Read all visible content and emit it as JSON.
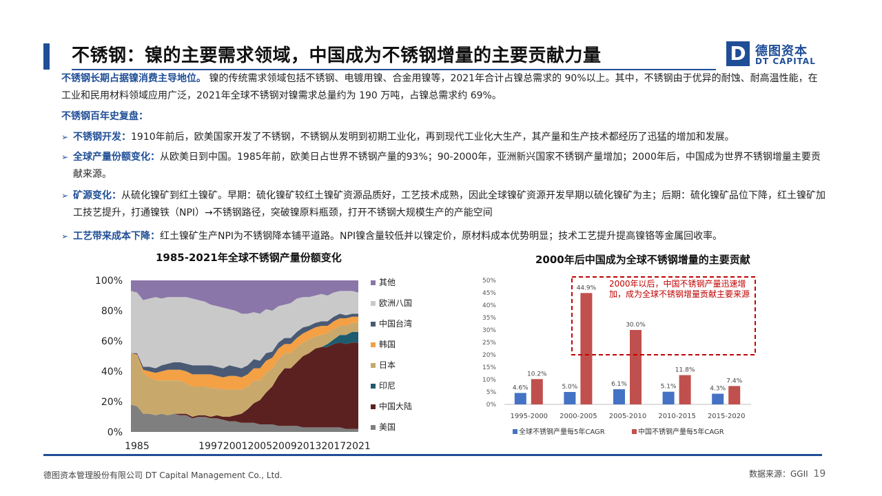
{
  "header": {
    "title": "不锈钢：镍的主要需求领域，中国成为不锈钢增量的主要贡献力量",
    "logo_mark": "D",
    "logo_cn": "德图资本",
    "logo_en": "DT CAPITAL"
  },
  "intro": {
    "lead": "不锈钢长期占据镍消费主导地位。",
    "body": "镍的传统需求领域包括不锈钢、电镀用镍、合金用镍等，2021年合计占镍总需求的 90%以上。其中，不锈钢由于优异的耐蚀、耐高温性能，在工业和民用材料领域应用广泛，2021年全球不锈钢对镍需求总量约为 190 万吨，占镍总需求约 69%。"
  },
  "history_title": "不锈钢百年史复盘：",
  "bullets": [
    {
      "head": "不锈钢开发：",
      "body": "1910年前后，欧美国家开发了不锈钢，不锈钢从发明到初期工业化，再到现代工业化大生产，其产量和生产技术都经历了迅猛的增加和发展。"
    },
    {
      "head": "全球产量份额变化：",
      "body": "从欧美日到中国。1985年前，欧美日占世界不锈钢产量的93%；90-2000年，亚洲新兴国家不锈钢产量增加；2000年后，中国成为世界不锈钢增量主要贡献来源。"
    },
    {
      "head": "矿源变化：",
      "body": "从硫化镍矿到红土镍矿。早期：硫化镍矿较红土镍矿资源品质好，工艺技术成熟，因此全球镍矿资源开发早期以硫化镍矿为主；后期：硫化镍矿品位下降，红土镍矿加工技艺提升，打通镍铁（NPI）→不锈钢路径，突破镍原料瓶颈，打开不锈钢大规模生产的产能空间"
    },
    {
      "head": "工艺带来成本下降：",
      "body": "红土镍矿生产NPI为不锈钢降本铺平道路。NPI镍含量较低并以镍定价，原材料成本优势明显；技术工艺提升提高镍铬等金属回收率。"
    }
  ],
  "chart_data": [
    {
      "type": "area",
      "title": "1985-2021年全球不锈钢产量份额变化",
      "x": [
        1984,
        1985,
        1986,
        1987,
        1988,
        1989,
        1990,
        1991,
        1992,
        1993,
        1994,
        1995,
        1996,
        1997,
        1998,
        1999,
        2000,
        2001,
        2002,
        2003,
        2004,
        2005,
        2006,
        2007,
        2008,
        2009,
        2010,
        2011,
        2012,
        2013,
        2014,
        2015,
        2016,
        2017,
        2018,
        2019,
        2020,
        2021
      ],
      "x_tick_labels": [
        "1985",
        "1997",
        "2001",
        "2005",
        "2009",
        "2013",
        "2017",
        "2021"
      ],
      "x_tick_values": [
        1985,
        1997,
        2001,
        2005,
        2009,
        2013,
        2017,
        2021
      ],
      "y_tick_labels": [
        "100%",
        "80%",
        "60%",
        "40%",
        "20%",
        "0%"
      ],
      "ylim": [
        0,
        100
      ],
      "legend_position": "right",
      "series": [
        {
          "name": "美国",
          "color": "#7f7f7f",
          "values": [
            18,
            17,
            12,
            12,
            11,
            12,
            11,
            12,
            11,
            11,
            9,
            10,
            10,
            9,
            9,
            8,
            7,
            7,
            6,
            6,
            6,
            5,
            5,
            5,
            4,
            4,
            4,
            4,
            3,
            3,
            3,
            3,
            3,
            3,
            3,
            2,
            2,
            2
          ]
        },
        {
          "name": "中国大陆",
          "color": "#5b2120",
          "values": [
            0,
            0,
            0,
            0,
            0,
            0,
            0,
            0,
            1,
            1,
            1,
            1,
            1,
            1,
            2,
            2,
            3,
            4,
            6,
            9,
            13,
            16,
            21,
            25,
            33,
            38,
            38,
            42,
            47,
            49,
            52,
            53,
            53,
            55,
            56,
            56,
            57,
            57
          ]
        },
        {
          "name": "印尼",
          "color": "#1d5b6e",
          "values": [
            0,
            0,
            0,
            0,
            0,
            0,
            0,
            0,
            0,
            0,
            0,
            0,
            0,
            0,
            0,
            0,
            0,
            0,
            0,
            0,
            0,
            0,
            0,
            0,
            0,
            0,
            0,
            0,
            0,
            0,
            0,
            0,
            2,
            3,
            5,
            6,
            7,
            7
          ]
        },
        {
          "name": "日本",
          "color": "#c8a96b",
          "values": [
            34,
            33,
            27,
            24,
            23,
            22,
            23,
            22,
            22,
            20,
            20,
            19,
            19,
            19,
            18,
            18,
            18,
            17,
            16,
            15,
            15,
            13,
            13,
            12,
            11,
            10,
            10,
            10,
            9,
            9,
            8,
            8,
            7,
            7,
            6,
            6,
            6,
            6
          ]
        },
        {
          "name": "韩国",
          "color": "#f4a044",
          "values": [
            0,
            1,
            2,
            4,
            5,
            6,
            7,
            7,
            7,
            8,
            8,
            8,
            8,
            9,
            8,
            8,
            9,
            9,
            8,
            8,
            8,
            8,
            8,
            7,
            7,
            6,
            6,
            6,
            6,
            6,
            6,
            6,
            5,
            5,
            5,
            5,
            4,
            4
          ]
        },
        {
          "name": "中国台湾",
          "color": "#4a5a74",
          "values": [
            0,
            1,
            2,
            3,
            3,
            4,
            4,
            5,
            5,
            5,
            6,
            6,
            6,
            6,
            6,
            6,
            7,
            6,
            6,
            6,
            6,
            5,
            5,
            4,
            4,
            4,
            4,
            4,
            4,
            3,
            3,
            3,
            3,
            3,
            3,
            2,
            2,
            2
          ]
        },
        {
          "name": "欧洲八国",
          "color": "#c9c9c9",
          "values": [
            41,
            40,
            44,
            45,
            47,
            44,
            44,
            43,
            43,
            44,
            44,
            43,
            42,
            40,
            40,
            40,
            37,
            37,
            36,
            34,
            31,
            31,
            29,
            27,
            24,
            22,
            23,
            22,
            20,
            19,
            18,
            18,
            17,
            16,
            15,
            16,
            15,
            14
          ]
        },
        {
          "name": "其他",
          "color": "#8a76a8",
          "values": [
            7,
            8,
            13,
            12,
            11,
            12,
            11,
            11,
            11,
            11,
            12,
            13,
            14,
            16,
            17,
            18,
            19,
            20,
            22,
            22,
            21,
            22,
            19,
            20,
            17,
            16,
            15,
            12,
            11,
            11,
            10,
            9,
            10,
            8,
            7,
            7,
            7,
            8
          ]
        }
      ]
    },
    {
      "type": "bar",
      "title": "2000年后中国成为全球不锈钢增量的主要贡献",
      "categories": [
        "1995-2000",
        "2000-2005",
        "2005-2010",
        "2010-2015",
        "2015-2020"
      ],
      "y_tick_labels": [
        "50%",
        "45%",
        "40%",
        "35%",
        "30%",
        "25%",
        "20%",
        "15%",
        "10%",
        "5%",
        "0%"
      ],
      "ylim": [
        0,
        50
      ],
      "series": [
        {
          "name": "全球不锈钢产量每5年CAGR",
          "color": "#4472c4",
          "values": [
            4.6,
            5.0,
            6.1,
            5.1,
            4.3
          ],
          "labels": [
            "4.6%",
            "5.0%",
            "6.1%",
            "5.1%",
            "4.3%"
          ]
        },
        {
          "name": "中国不锈钢产量每5年CAGR",
          "color": "#c0504d",
          "values": [
            10.2,
            44.9,
            30.0,
            11.8,
            7.4
          ],
          "labels": [
            "10.2%",
            "44.9%",
            "30.0%",
            "11.8%",
            "7.4%"
          ]
        }
      ],
      "annotation": "2000年以后，中国不锈钢产量迅速增加，成为全球不锈钢增量贡献主要来源",
      "annotation_color": "#c00000",
      "legend_position": "bottom"
    }
  ],
  "footer": {
    "company": "德图资本管理股份有限公司  DT Capital Management  Co., Ltd.",
    "source": "数据来源：GGII",
    "page": "19"
  },
  "colors": {
    "accent": "#1f4e96"
  }
}
